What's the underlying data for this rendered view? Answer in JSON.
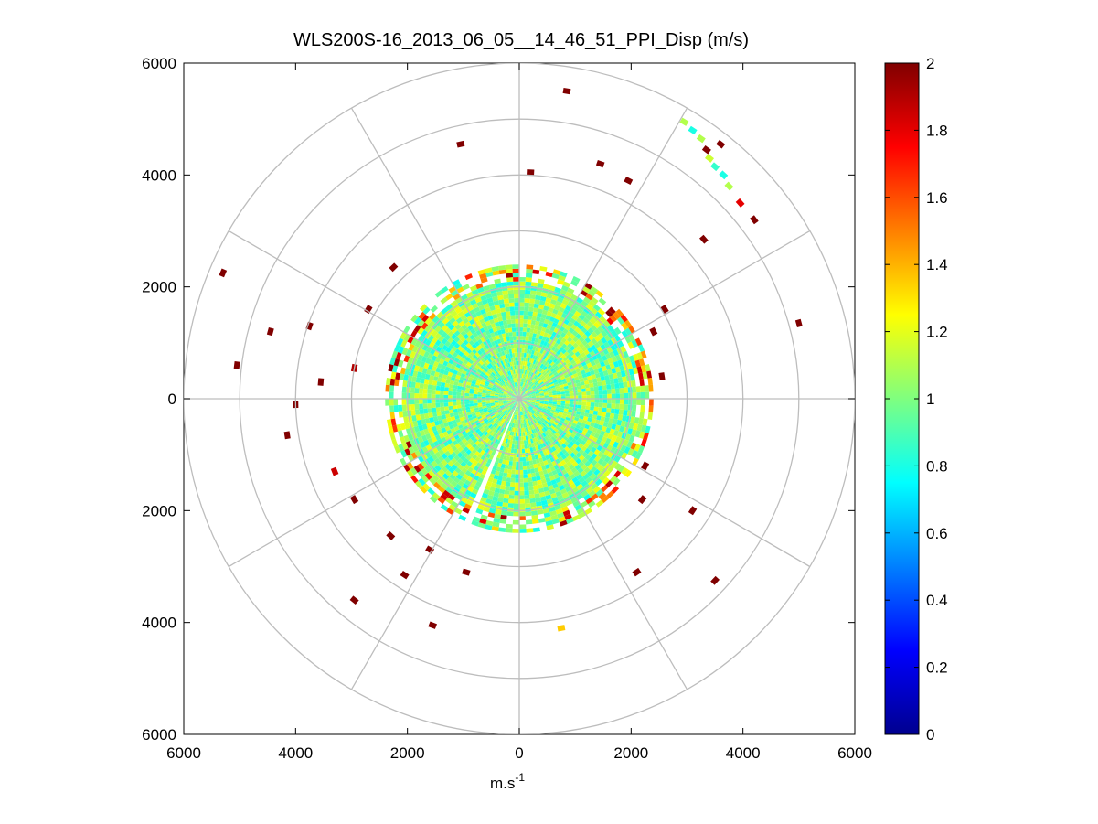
{
  "chart_data": {
    "type": "heatmap",
    "subtype": "polar-ppi",
    "title": "WLS200S-16_2013_06_05__14_46_51_PPI_Disp (m/s)",
    "xlabel_base": "m.s",
    "xlabel_exponent": "-1",
    "xlim": [
      -6000,
      6000
    ],
    "ylim": [
      -6000,
      6000
    ],
    "x_tick_labels": [
      "6000",
      "4000",
      "2000",
      "0",
      "2000",
      "4000",
      "6000"
    ],
    "y_tick_labels": [
      "6000",
      "4000",
      "2000",
      "0",
      "2000",
      "4000",
      "6000"
    ],
    "x_tick_values": [
      -6000,
      -4000,
      -2000,
      0,
      2000,
      4000,
      6000
    ],
    "y_tick_values": [
      6000,
      4000,
      2000,
      0,
      -2000,
      -4000,
      -6000
    ],
    "range_rings_m": [
      1000,
      2000,
      3000,
      4000,
      5000,
      6000
    ],
    "azimuth_spokes_deg": [
      0,
      30,
      60,
      90,
      120,
      150,
      180,
      210,
      240,
      270,
      300,
      330
    ],
    "grid": true,
    "colormap": "jet",
    "colorbar": {
      "range": [
        0,
        2
      ],
      "tick_labels": [
        "0",
        "0.2",
        "0.4",
        "0.6",
        "0.8",
        "1",
        "1.2",
        "1.4",
        "1.6",
        "1.8",
        "2"
      ],
      "tick_values": [
        0,
        0.2,
        0.4,
        0.6,
        0.8,
        1,
        1.2,
        1.4,
        1.6,
        1.8,
        2
      ],
      "placement": "right"
    },
    "dense_region": {
      "inner_range_m": 0,
      "outer_range_m": 2350,
      "typical_value": 1.0,
      "gap_sector_deg": [
        200,
        205
      ]
    },
    "scattered_points": [
      {
        "x": 850,
        "y": 5500,
        "v": 2
      },
      {
        "x": -1050,
        "y": 4550,
        "v": 2
      },
      {
        "x": 200,
        "y": 4050,
        "v": 2
      },
      {
        "x": 1450,
        "y": 4200,
        "v": 2
      },
      {
        "x": 1950,
        "y": 3900,
        "v": 2
      },
      {
        "x": 2950,
        "y": 4950,
        "v": 1.1
      },
      {
        "x": 3100,
        "y": 4800,
        "v": 0.8
      },
      {
        "x": 3250,
        "y": 4650,
        "v": 1.1
      },
      {
        "x": 3350,
        "y": 4450,
        "v": 2
      },
      {
        "x": 3400,
        "y": 4300,
        "v": 1.15
      },
      {
        "x": 3500,
        "y": 4150,
        "v": 0.85
      },
      {
        "x": 3650,
        "y": 4000,
        "v": 0.8
      },
      {
        "x": 3750,
        "y": 3800,
        "v": 1.1
      },
      {
        "x": 3600,
        "y": 4550,
        "v": 2
      },
      {
        "x": 3950,
        "y": 3500,
        "v": 1.8
      },
      {
        "x": 4200,
        "y": 3200,
        "v": 2
      },
      {
        "x": 3300,
        "y": 2850,
        "v": 2
      },
      {
        "x": 5000,
        "y": 1350,
        "v": 2
      },
      {
        "x": 2600,
        "y": 1600,
        "v": 2
      },
      {
        "x": 2400,
        "y": 1200,
        "v": 2
      },
      {
        "x": 2550,
        "y": 400,
        "v": 2
      },
      {
        "x": -5300,
        "y": 2250,
        "v": 2
      },
      {
        "x": -5050,
        "y": 600,
        "v": 2
      },
      {
        "x": -4450,
        "y": 1200,
        "v": 2
      },
      {
        "x": -3750,
        "y": 1300,
        "v": 2
      },
      {
        "x": -2700,
        "y": 1600,
        "v": 2
      },
      {
        "x": -2250,
        "y": 2350,
        "v": 2
      },
      {
        "x": -3550,
        "y": 300,
        "v": 2
      },
      {
        "x": -2950,
        "y": 550,
        "v": 1.9
      },
      {
        "x": -4000,
        "y": -100,
        "v": 2
      },
      {
        "x": -4150,
        "y": -650,
        "v": 2
      },
      {
        "x": -3300,
        "y": -1300,
        "v": 1.85
      },
      {
        "x": -2950,
        "y": -1800,
        "v": 2
      },
      {
        "x": -2300,
        "y": -2450,
        "v": 2
      },
      {
        "x": -1600,
        "y": -2700,
        "v": 2
      },
      {
        "x": -2050,
        "y": -3150,
        "v": 2
      },
      {
        "x": -950,
        "y": -3100,
        "v": 2
      },
      {
        "x": -2950,
        "y": -3600,
        "v": 2
      },
      {
        "x": -1550,
        "y": -4050,
        "v": 2
      },
      {
        "x": 750,
        "y": -4100,
        "v": 1.35
      },
      {
        "x": 2200,
        "y": -1800,
        "v": 2
      },
      {
        "x": 3100,
        "y": -2000,
        "v": 2
      },
      {
        "x": 2250,
        "y": -1200,
        "v": 2
      },
      {
        "x": 2100,
        "y": -3100,
        "v": 2
      },
      {
        "x": 3500,
        "y": -3250,
        "v": 2
      }
    ]
  }
}
